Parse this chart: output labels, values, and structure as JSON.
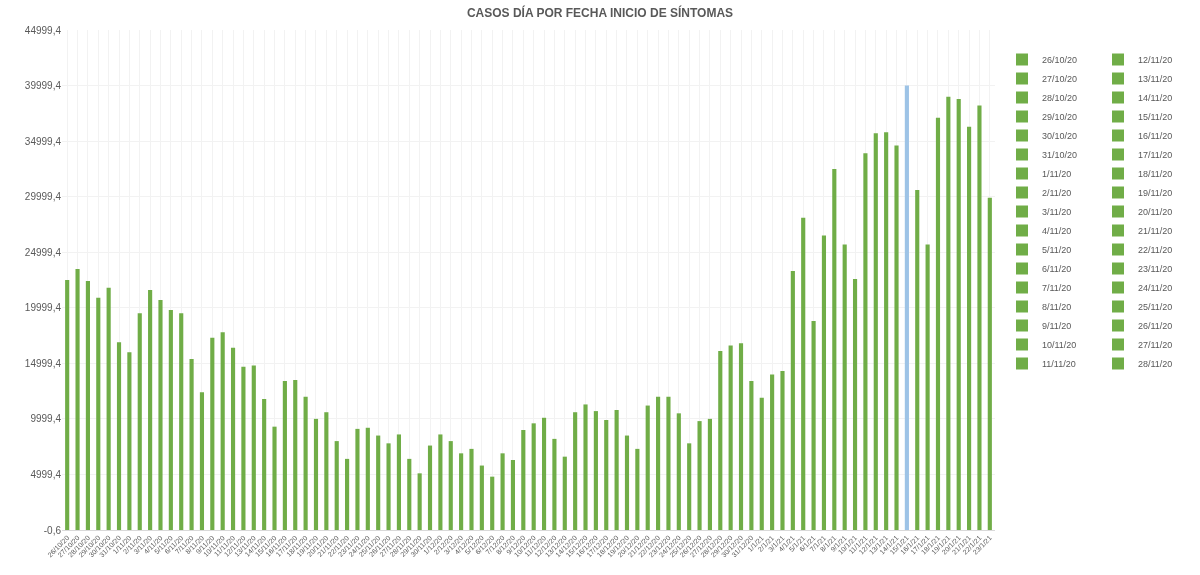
{
  "chart_data": {
    "type": "bar",
    "title": "CASOS DÍA POR FECHA INICIO DE SÍNTOMAS",
    "categories": [
      "26/10/20",
      "27/10/20",
      "28/10/20",
      "29/10/20",
      "30/10/20",
      "31/10/20",
      "1/11/20",
      "2/11/20",
      "3/11/20",
      "4/11/20",
      "5/11/20",
      "6/11/20",
      "7/11/20",
      "8/11/20",
      "9/11/20",
      "10/11/20",
      "11/11/20",
      "12/11/20",
      "13/11/20",
      "14/11/20",
      "15/11/20",
      "16/11/20",
      "17/11/20",
      "18/11/20",
      "19/11/20",
      "20/11/20",
      "21/11/20",
      "22/11/20",
      "23/11/20",
      "24/11/20",
      "25/11/20",
      "26/11/20",
      "27/11/20",
      "28/11/20",
      "29/11/20",
      "30/11/20",
      "1/12/20",
      "2/12/20",
      "3/12/20",
      "4/12/20",
      "5/12/20",
      "6/12/20",
      "7/12/20",
      "8/12/20",
      "9/12/20",
      "10/12/20",
      "11/12/20",
      "12/12/20",
      "13/12/20",
      "14/12/20",
      "15/12/20",
      "16/12/20",
      "17/12/20",
      "18/12/20",
      "19/12/20",
      "20/12/20",
      "21/12/20",
      "22/12/20",
      "23/12/20",
      "24/12/20",
      "25/12/20",
      "26/12/20",
      "27/12/20",
      "28/12/20",
      "29/12/20",
      "30/12/20",
      "31/12/20",
      "1/1/21",
      "2/1/21",
      "3/1/21",
      "4/1/21",
      "5/1/21",
      "6/1/21",
      "7/1/21",
      "8/1/21",
      "9/1/21",
      "10/1/21",
      "11/1/21",
      "12/1/21",
      "13/1/21",
      "14/1/21",
      "15/1/21",
      "16/1/21",
      "17/1/21",
      "18/1/21",
      "19/1/21",
      "20/1/21",
      "21/1/21",
      "22/1/21",
      "23/1/21"
    ],
    "series": [
      {
        "name": "26/10/20",
        "color": "#70ad47",
        "x": [
          "26/10/20"
        ],
        "values": [
          22500
        ]
      },
      {
        "name": "27/10/20",
        "color": "#70ad47",
        "x": [
          "27/10/20"
        ],
        "values": [
          23500
        ]
      },
      {
        "name": "28/10/20",
        "color": "#70ad47",
        "x": [
          "28/10/20"
        ],
        "values": [
          22400
        ]
      },
      {
        "name": "29/10/20",
        "color": "#70ad47",
        "x": [
          "29/10/20"
        ],
        "values": [
          20900
        ]
      },
      {
        "name": "30/10/20",
        "color": "#70ad47",
        "x": [
          "30/10/20"
        ],
        "values": [
          21800
        ]
      },
      {
        "name": "31/10/20",
        "color": "#70ad47",
        "x": [
          "31/10/20"
        ],
        "values": [
          16900
        ]
      },
      {
        "name": "1/11/20",
        "color": "#70ad47",
        "x": [
          "1/11/20"
        ],
        "values": [
          16000
        ]
      },
      {
        "name": "2/11/20",
        "color": "#70ad47",
        "x": [
          "2/11/20"
        ],
        "values": [
          19500
        ]
      },
      {
        "name": "3/11/20",
        "color": "#70ad47",
        "x": [
          "3/11/20"
        ],
        "values": [
          21600
        ]
      },
      {
        "name": "4/11/20",
        "color": "#70ad47",
        "x": [
          "4/11/20"
        ],
        "values": [
          20700
        ]
      },
      {
        "name": "5/11/20",
        "color": "#70ad47",
        "x": [
          "5/11/20"
        ],
        "values": [
          19800
        ]
      },
      {
        "name": "6/11/20",
        "color": "#70ad47",
        "x": [
          "6/11/20"
        ],
        "values": [
          19500
        ]
      },
      {
        "name": "7/11/20",
        "color": "#70ad47",
        "x": [
          "7/11/20"
        ],
        "values": [
          15400
        ]
      },
      {
        "name": "8/11/20",
        "color": "#70ad47",
        "x": [
          "8/11/20"
        ],
        "values": [
          12400
        ]
      },
      {
        "name": "9/11/20",
        "color": "#70ad47",
        "x": [
          "9/11/20"
        ],
        "values": [
          17300
        ]
      },
      {
        "name": "10/11/20",
        "color": "#70ad47",
        "x": [
          "10/11/20"
        ],
        "values": [
          17800
        ]
      },
      {
        "name": "11/11/20",
        "color": "#70ad47",
        "x": [
          "11/11/20"
        ],
        "values": [
          16400
        ]
      },
      {
        "name": "12/11/20",
        "color": "#70ad47",
        "x": [
          "12/11/20"
        ],
        "values": [
          14700
        ]
      },
      {
        "name": "13/11/20",
        "color": "#70ad47",
        "x": [
          "13/11/20"
        ],
        "values": [
          14800
        ]
      },
      {
        "name": "14/11/20",
        "color": "#70ad47",
        "x": [
          "14/11/20"
        ],
        "values": [
          11800
        ]
      },
      {
        "name": "15/11/20",
        "color": "#70ad47",
        "x": [
          "15/11/20"
        ],
        "values": [
          9300
        ]
      },
      {
        "name": "16/11/20",
        "color": "#70ad47",
        "x": [
          "16/11/20"
        ],
        "values": [
          13400
        ]
      },
      {
        "name": "17/11/20",
        "color": "#70ad47",
        "x": [
          "17/11/20"
        ],
        "values": [
          13500
        ]
      },
      {
        "name": "18/11/20",
        "color": "#70ad47",
        "x": [
          "18/11/20"
        ],
        "values": [
          12000
        ]
      },
      {
        "name": "19/11/20",
        "color": "#70ad47",
        "x": [
          "19/11/20"
        ],
        "values": [
          10000
        ]
      },
      {
        "name": "20/11/20",
        "color": "#70ad47",
        "x": [
          "20/11/20"
        ],
        "values": [
          10600
        ]
      },
      {
        "name": "21/11/20",
        "color": "#70ad47",
        "x": [
          "21/11/20"
        ],
        "values": [
          8000
        ]
      },
      {
        "name": "22/11/20",
        "color": "#70ad47",
        "x": [
          "22/11/20"
        ],
        "values": [
          6400
        ]
      },
      {
        "name": "23/11/20",
        "color": "#70ad47",
        "x": [
          "23/11/20"
        ],
        "values": [
          9100
        ]
      },
      {
        "name": "24/11/20",
        "color": "#70ad47",
        "x": [
          "24/11/20"
        ],
        "values": [
          9200
        ]
      },
      {
        "name": "25/11/20",
        "color": "#70ad47",
        "x": [
          "25/11/20"
        ],
        "values": [
          8500
        ]
      },
      {
        "name": "26/11/20",
        "color": "#70ad47",
        "x": [
          "26/11/20"
        ],
        "values": [
          7800
        ]
      },
      {
        "name": "27/11/20",
        "color": "#70ad47",
        "x": [
          "27/11/20"
        ],
        "values": [
          8600
        ]
      },
      {
        "name": "28/11/20",
        "color": "#70ad47",
        "x": [
          "28/11/20"
        ],
        "values": [
          6400
        ]
      },
      {
        "color": "#70ad47",
        "x": [
          "29/11/20"
        ],
        "values": [
          5100
        ]
      },
      {
        "color": "#70ad47",
        "x": [
          "30/11/20"
        ],
        "values": [
          7600
        ]
      },
      {
        "color": "#70ad47",
        "x": [
          "1/12/20"
        ],
        "values": [
          8600
        ]
      },
      {
        "color": "#70ad47",
        "x": [
          "2/12/20"
        ],
        "values": [
          8000
        ]
      },
      {
        "color": "#70ad47",
        "x": [
          "3/12/20"
        ],
        "values": [
          6900
        ]
      },
      {
        "color": "#70ad47",
        "x": [
          "4/12/20"
        ],
        "values": [
          7300
        ]
      },
      {
        "color": "#70ad47",
        "x": [
          "5/12/20"
        ],
        "values": [
          5800
        ]
      },
      {
        "color": "#70ad47",
        "x": [
          "6/12/20"
        ],
        "values": [
          4800
        ]
      },
      {
        "color": "#70ad47",
        "x": [
          "7/12/20"
        ],
        "values": [
          6900
        ]
      },
      {
        "color": "#70ad47",
        "x": [
          "8/12/20"
        ],
        "values": [
          6300
        ]
      },
      {
        "color": "#70ad47",
        "x": [
          "9/12/20"
        ],
        "values": [
          9000
        ]
      },
      {
        "color": "#70ad47",
        "x": [
          "10/12/20"
        ],
        "values": [
          9600
        ]
      },
      {
        "color": "#70ad47",
        "x": [
          "11/12/20"
        ],
        "values": [
          10100
        ]
      },
      {
        "color": "#70ad47",
        "x": [
          "12/12/20"
        ],
        "values": [
          8200
        ]
      },
      {
        "color": "#70ad47",
        "x": [
          "13/12/20"
        ],
        "values": [
          6600
        ]
      },
      {
        "color": "#70ad47",
        "x": [
          "14/12/20"
        ],
        "values": [
          10600
        ]
      },
      {
        "color": "#70ad47",
        "x": [
          "15/12/20"
        ],
        "values": [
          11300
        ]
      },
      {
        "color": "#70ad47",
        "x": [
          "16/12/20"
        ],
        "values": [
          10700
        ]
      },
      {
        "color": "#70ad47",
        "x": [
          "17/12/20"
        ],
        "values": [
          9900
        ]
      },
      {
        "color": "#70ad47",
        "x": [
          "18/12/20"
        ],
        "values": [
          10800
        ]
      },
      {
        "color": "#70ad47",
        "x": [
          "19/12/20"
        ],
        "values": [
          8500
        ]
      },
      {
        "color": "#70ad47",
        "x": [
          "20/12/20"
        ],
        "values": [
          7300
        ]
      },
      {
        "color": "#70ad47",
        "x": [
          "21/12/20"
        ],
        "values": [
          11200
        ]
      },
      {
        "color": "#70ad47",
        "x": [
          "22/12/20"
        ],
        "values": [
          12000
        ]
      },
      {
        "color": "#70ad47",
        "x": [
          "23/12/20"
        ],
        "values": [
          12000
        ]
      },
      {
        "color": "#70ad47",
        "x": [
          "24/12/20"
        ],
        "values": [
          10500
        ]
      },
      {
        "color": "#70ad47",
        "x": [
          "25/12/20"
        ],
        "values": [
          7800
        ]
      },
      {
        "color": "#70ad47",
        "x": [
          "26/12/20"
        ],
        "values": [
          9800
        ]
      },
      {
        "color": "#70ad47",
        "x": [
          "27/12/20"
        ],
        "values": [
          10000
        ]
      },
      {
        "color": "#70ad47",
        "x": [
          "28/12/20"
        ],
        "values": [
          16100
        ]
      },
      {
        "color": "#70ad47",
        "x": [
          "29/12/20"
        ],
        "values": [
          16600
        ]
      },
      {
        "color": "#70ad47",
        "x": [
          "30/12/20"
        ],
        "values": [
          16800
        ]
      },
      {
        "color": "#70ad47",
        "x": [
          "31/12/20"
        ],
        "values": [
          13400
        ]
      },
      {
        "color": "#70ad47",
        "x": [
          "1/1/21"
        ],
        "values": [
          11900
        ]
      },
      {
        "color": "#70ad47",
        "x": [
          "2/1/21"
        ],
        "values": [
          14000
        ]
      },
      {
        "color": "#70ad47",
        "x": [
          "3/1/21"
        ],
        "values": [
          14300
        ]
      },
      {
        "color": "#70ad47",
        "x": [
          "4/1/21"
        ],
        "values": [
          23300
        ]
      },
      {
        "color": "#70ad47",
        "x": [
          "5/1/21"
        ],
        "values": [
          28100
        ]
      },
      {
        "color": "#70ad47",
        "x": [
          "6/1/21"
        ],
        "values": [
          18800
        ]
      },
      {
        "color": "#70ad47",
        "x": [
          "7/1/21"
        ],
        "values": [
          26500
        ]
      },
      {
        "color": "#70ad47",
        "x": [
          "8/1/21"
        ],
        "values": [
          32500
        ]
      },
      {
        "color": "#70ad47",
        "x": [
          "9/1/21"
        ],
        "values": [
          25700
        ]
      },
      {
        "color": "#70ad47",
        "x": [
          "10/1/21"
        ],
        "values": [
          22600
        ]
      },
      {
        "color": "#70ad47",
        "x": [
          "11/1/21"
        ],
        "values": [
          33900
        ]
      },
      {
        "color": "#70ad47",
        "x": [
          "12/1/21"
        ],
        "values": [
          35700
        ]
      },
      {
        "color": "#70ad47",
        "x": [
          "13/1/21"
        ],
        "values": [
          35800
        ]
      },
      {
        "color": "#70ad47",
        "x": [
          "14/1/21"
        ],
        "values": [
          34600
        ]
      },
      {
        "color": "#9dc3e6",
        "x": [
          "15/1/21"
        ],
        "values": [
          40000
        ]
      },
      {
        "color": "#70ad47",
        "x": [
          "16/1/21"
        ],
        "values": [
          30600
        ]
      },
      {
        "color": "#70ad47",
        "x": [
          "17/1/21"
        ],
        "values": [
          25700
        ]
      },
      {
        "color": "#70ad47",
        "x": [
          "18/1/21"
        ],
        "values": [
          37100
        ]
      },
      {
        "color": "#70ad47",
        "x": [
          "19/1/21"
        ],
        "values": [
          39000
        ]
      },
      {
        "color": "#70ad47",
        "x": [
          "20/1/21"
        ],
        "values": [
          38800
        ]
      },
      {
        "color": "#70ad47",
        "x": [
          "21/1/21"
        ],
        "values": [
          36300
        ]
      },
      {
        "color": "#70ad47",
        "x": [
          "22/1/21"
        ],
        "values": [
          38200
        ]
      },
      {
        "color": "#70ad47",
        "x": [
          "23/1/21"
        ],
        "values": [
          29900
        ]
      }
    ],
    "ylim": [
      -0.6,
      44999.4
    ],
    "yticks": [
      {
        "value": -0.6,
        "label": "-0,6"
      },
      {
        "value": 4999.4,
        "label": "4999,4"
      },
      {
        "value": 9999.4,
        "label": "9999,4"
      },
      {
        "value": 14999.4,
        "label": "14999,4"
      },
      {
        "value": 19999.4,
        "label": "19999,4"
      },
      {
        "value": 24999.4,
        "label": "24999,4"
      },
      {
        "value": 29999.4,
        "label": "29999,4"
      },
      {
        "value": 34999.4,
        "label": "34999,4"
      },
      {
        "value": 39999.4,
        "label": "39999,4"
      },
      {
        "value": 44999.4,
        "label": "44999,4"
      }
    ],
    "grid": true,
    "legend": "right"
  }
}
